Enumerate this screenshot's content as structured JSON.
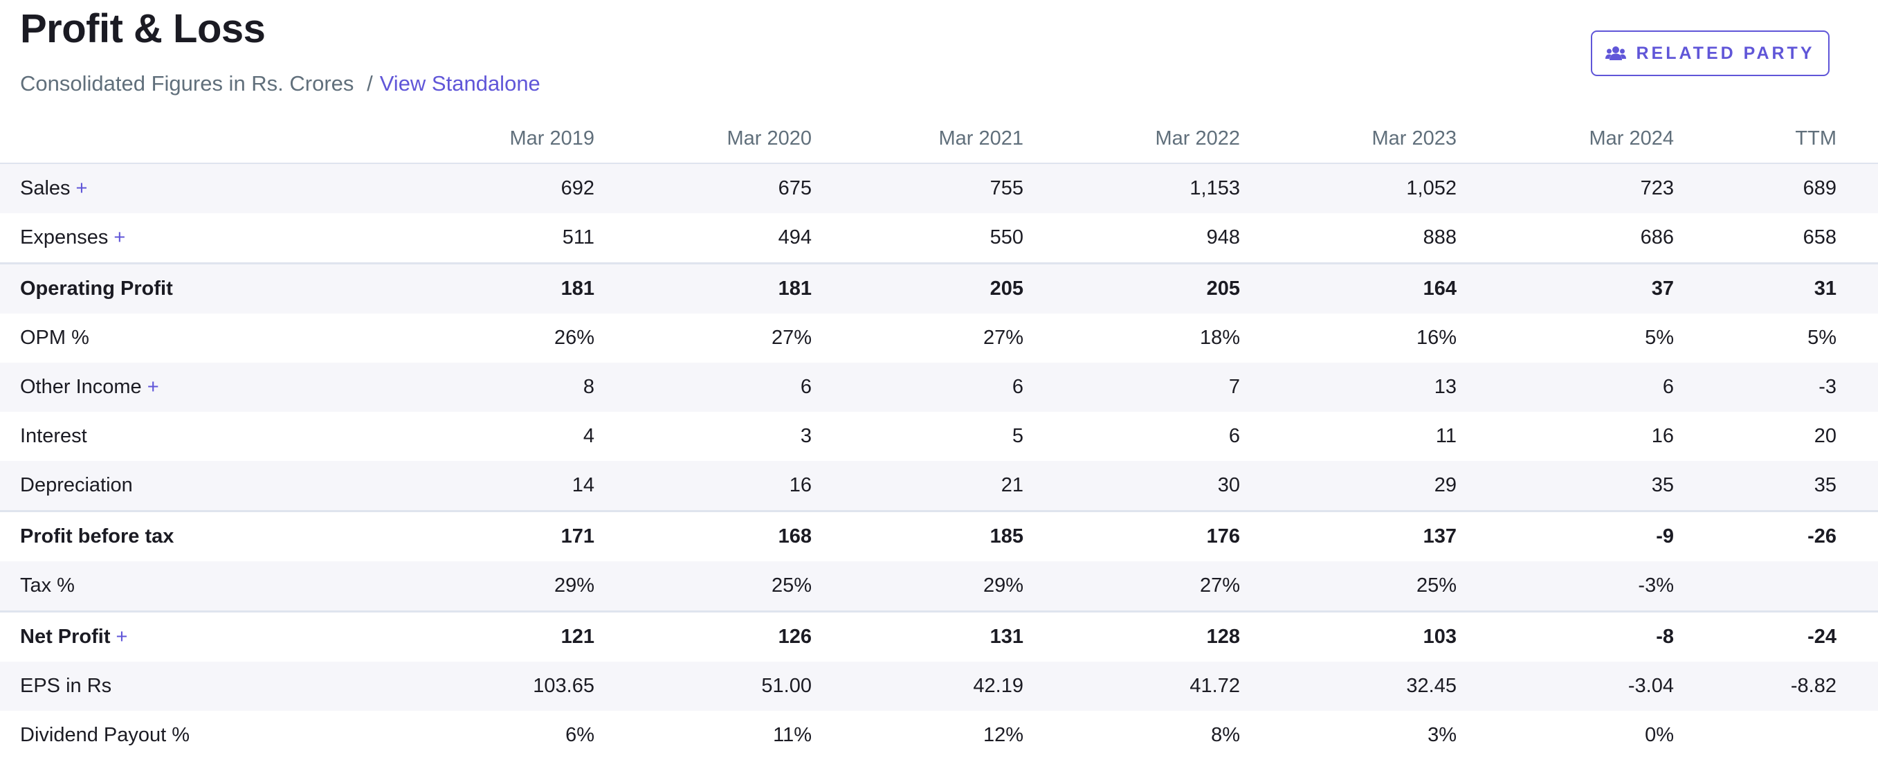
{
  "header": {
    "title": "Profit & Loss",
    "subtitle_text": "Consolidated Figures in Rs. Crores",
    "subtitle_separator": "/",
    "standalone_link": "View Standalone",
    "related_party_label": "RELATED PARTY",
    "related_party_icon": "users-icon"
  },
  "colors": {
    "accent": "#6056d8",
    "muted_text": "#606f7b",
    "stripe": "#f6f6fa",
    "border": "#dfe4ee"
  },
  "table": {
    "columns": [
      "Mar 2019",
      "Mar 2020",
      "Mar 2021",
      "Mar 2022",
      "Mar 2023",
      "Mar 2024",
      "TTM"
    ],
    "rows": [
      {
        "label": "Sales",
        "expandable": true,
        "values": [
          "692",
          "675",
          "755",
          "1,153",
          "1,052",
          "723",
          "689"
        ]
      },
      {
        "label": "Expenses",
        "expandable": true,
        "values": [
          "511",
          "494",
          "550",
          "948",
          "888",
          "686",
          "658"
        ]
      },
      {
        "label": "Operating Profit",
        "expandable": false,
        "values": [
          "181",
          "181",
          "205",
          "205",
          "164",
          "37",
          "31"
        ]
      },
      {
        "label": "OPM %",
        "expandable": false,
        "values": [
          "26%",
          "27%",
          "27%",
          "18%",
          "16%",
          "5%",
          "5%"
        ]
      },
      {
        "label": "Other Income",
        "expandable": true,
        "values": [
          "8",
          "6",
          "6",
          "7",
          "13",
          "6",
          "-3"
        ]
      },
      {
        "label": "Interest",
        "expandable": false,
        "values": [
          "4",
          "3",
          "5",
          "6",
          "11",
          "16",
          "20"
        ]
      },
      {
        "label": "Depreciation",
        "expandable": false,
        "values": [
          "14",
          "16",
          "21",
          "30",
          "29",
          "35",
          "35"
        ]
      },
      {
        "label": "Profit before tax",
        "expandable": false,
        "values": [
          "171",
          "168",
          "185",
          "176",
          "137",
          "-9",
          "-26"
        ]
      },
      {
        "label": "Tax %",
        "expandable": false,
        "values": [
          "29%",
          "25%",
          "29%",
          "27%",
          "25%",
          "-3%",
          ""
        ]
      },
      {
        "label": "Net Profit",
        "expandable": true,
        "values": [
          "121",
          "126",
          "131",
          "128",
          "103",
          "-8",
          "-24"
        ]
      },
      {
        "label": "EPS in Rs",
        "expandable": false,
        "values": [
          "103.65",
          "51.00",
          "42.19",
          "41.72",
          "32.45",
          "-3.04",
          "-8.82"
        ]
      },
      {
        "label": "Dividend Payout %",
        "expandable": false,
        "values": [
          "6%",
          "11%",
          "12%",
          "8%",
          "3%",
          "0%",
          ""
        ]
      }
    ],
    "expand_symbol": "+"
  }
}
